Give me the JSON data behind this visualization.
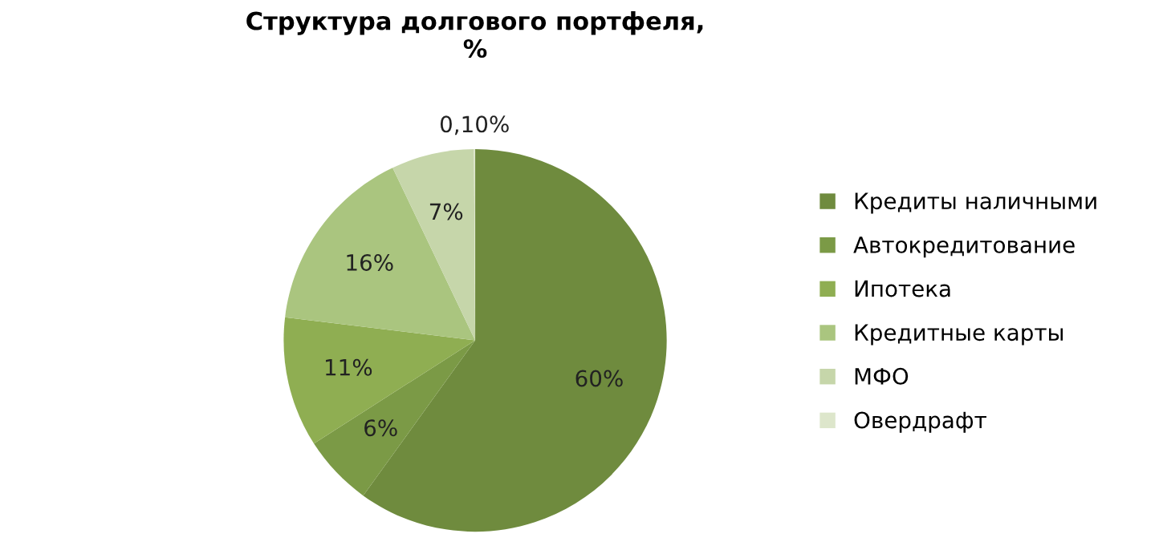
{
  "chart_data": {
    "type": "pie",
    "title": "Структура долгового портфеля,\n%",
    "categories": [
      "Кредиты наличными",
      "Автокредитование",
      "Ипотека",
      "Кредитные карты",
      "МФО",
      "Овердрафт"
    ],
    "values": [
      60,
      6,
      11,
      16,
      7,
      0.1
    ],
    "value_labels": [
      "60%",
      "6%",
      "11%",
      "16%",
      "7%",
      "0,10%"
    ],
    "colors": [
      "#6f8b3e",
      "#7b9a46",
      "#8fae52",
      "#aac57f",
      "#c6d6aa",
      "#dde6cb"
    ],
    "legend": "right"
  }
}
